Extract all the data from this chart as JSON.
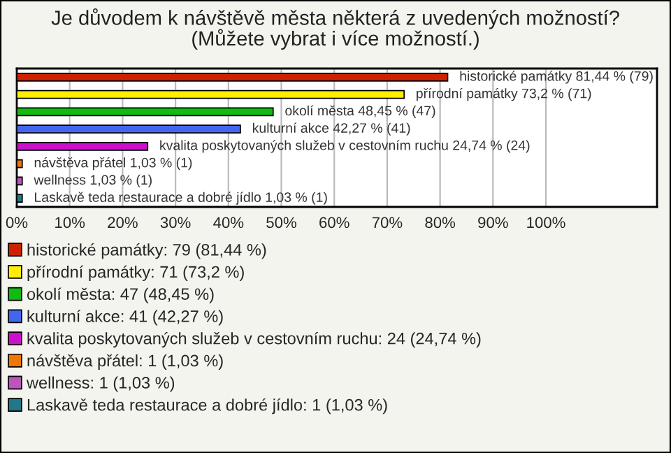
{
  "chart_data": {
    "type": "bar",
    "orientation": "horizontal",
    "title": "Je důvodem k návštěvě města některá z uvedených možností?\n(Můžete vybrat i více možností.)",
    "categories": [
      null,
      null,
      null,
      null,
      null,
      null,
      null,
      null
    ],
    "xlim": [
      0,
      121
    ],
    "xticks": [
      {
        "value": 0,
        "label": "0%"
      },
      {
        "value": 10,
        "label": "10%"
      },
      {
        "value": 20,
        "label": "20%"
      },
      {
        "value": 30,
        "label": "30%"
      },
      {
        "value": 40,
        "label": "40%"
      },
      {
        "value": 50,
        "label": "50%"
      },
      {
        "value": 60,
        "label": "60%"
      },
      {
        "value": 70,
        "label": "70%"
      },
      {
        "value": 80,
        "label": "80%"
      },
      {
        "value": 90,
        "label": "90%"
      },
      {
        "value": 100,
        "label": "100%"
      }
    ],
    "grid": "x",
    "legend": "bottom",
    "series": [
      {
        "name": "historické památky: 79 (81,44 %)",
        "color": "#cc2200",
        "values": [
          81.44,
          null,
          null,
          null,
          null,
          null,
          null,
          null
        ],
        "value_labels": [
          "historické památky 81,44 % (79)",
          null,
          null,
          null,
          null,
          null,
          null,
          null
        ]
      },
      {
        "name": "přírodní památky: 71 (73,2 %)",
        "color": "#ffee00",
        "values": [
          null,
          73.2,
          null,
          null,
          null,
          null,
          null,
          null
        ],
        "value_labels": [
          null,
          "přírodní památky 73,2 % (71)",
          null,
          null,
          null,
          null,
          null,
          null
        ]
      },
      {
        "name": "okolí města: 47 (48,45 %)",
        "color": "#11bb11",
        "values": [
          null,
          null,
          48.45,
          null,
          null,
          null,
          null,
          null
        ],
        "value_labels": [
          null,
          null,
          "okolí města 48,45 % (47)",
          null,
          null,
          null,
          null,
          null
        ]
      },
      {
        "name": "kulturní akce: 41 (42,27 %)",
        "color": "#4466ee",
        "values": [
          null,
          null,
          null,
          42.27,
          null,
          null,
          null,
          null
        ],
        "value_labels": [
          null,
          null,
          null,
          "kulturní akce 42,27 % (41)",
          null,
          null,
          null,
          null
        ]
      },
      {
        "name": "kvalita poskytovaných služeb v cestovním ruchu: 24 (24,74 %)",
        "color": "#cc11cc",
        "values": [
          null,
          null,
          null,
          null,
          24.74,
          null,
          null,
          null
        ],
        "value_labels": [
          null,
          null,
          null,
          null,
          "kvalita poskytovaných služeb v cestovním ruchu 24,74 % (24)",
          null,
          null,
          null
        ]
      },
      {
        "name": "návštěva přátel: 1 (1,03 %)",
        "color": "#ee7700",
        "values": [
          null,
          null,
          null,
          null,
          null,
          1.03,
          null,
          null
        ],
        "value_labels": [
          null,
          null,
          null,
          null,
          null,
          "návštěva přátel 1,03 % (1)",
          null,
          null
        ]
      },
      {
        "name": "wellness: 1 (1,03 %)",
        "color": "#bb55bb",
        "values": [
          null,
          null,
          null,
          null,
          null,
          null,
          1.03,
          null
        ],
        "value_labels": [
          null,
          null,
          null,
          null,
          null,
          null,
          "wellness 1,03 % (1)",
          null
        ]
      },
      {
        "name": "Laskavě teda restaurace a dobré jídlo: 1 (1,03 %)",
        "color": "#227788",
        "values": [
          null,
          null,
          null,
          null,
          null,
          null,
          null,
          1.03
        ],
        "value_labels": [
          null,
          null,
          null,
          null,
          null,
          null,
          null,
          "Laskavě teda restaurace a dobré jídlo 1,03 % (1)"
        ]
      }
    ]
  }
}
